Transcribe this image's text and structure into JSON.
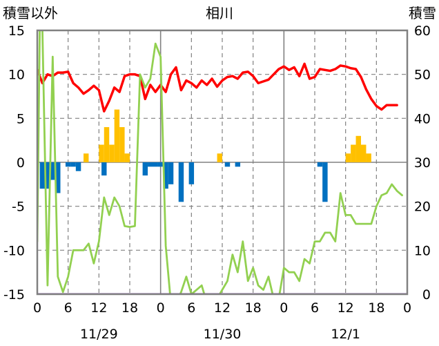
{
  "chart_data": {
    "type": "line",
    "title": "相川",
    "y_left_label": "積雪以外",
    "y_right_label": "積雪",
    "y_left_range": [
      -15,
      15
    ],
    "y_left_ticks": [
      15,
      10,
      5,
      0,
      -5,
      -10,
      -15
    ],
    "y_right_range": [
      0,
      60
    ],
    "y_right_ticks": [
      60,
      50,
      40,
      30,
      20,
      10,
      0
    ],
    "x_range": [
      0,
      72
    ],
    "x_tick_values": [
      0,
      6,
      12,
      18,
      24,
      30,
      36,
      42,
      48,
      54,
      60,
      66,
      72
    ],
    "x_tick_labels": [
      "0",
      "6",
      "12",
      "18",
      "0",
      "6",
      "12",
      "18",
      "0",
      "6",
      "12",
      "18",
      "0"
    ],
    "date_labels": [
      {
        "label": "11/29",
        "x": 12
      },
      {
        "label": "11/30",
        "x": 36
      },
      {
        "label": "12/1",
        "x": 60
      }
    ],
    "day_boundaries": [
      24,
      48
    ],
    "dashed_gridlines_x": [
      6,
      12,
      18,
      30,
      36,
      42,
      54,
      60,
      66
    ],
    "dashed_gridlines_y": [
      10,
      5,
      -5,
      -10
    ],
    "colors": {
      "temperature": "#ff0000",
      "precip": "#ffc000",
      "change": "#0070c0",
      "snow": "#92d050",
      "baseline": "#7030a0",
      "grid": "#808080"
    },
    "series": [
      {
        "kind": "line",
        "axis": "left",
        "color": "#ff0000",
        "points": [
          [
            0,
            10.5
          ],
          [
            1,
            9
          ],
          [
            2,
            10
          ],
          [
            3,
            9.8
          ],
          [
            4,
            10.2
          ],
          [
            5,
            10.2
          ],
          [
            6,
            10.3
          ],
          [
            7,
            9
          ],
          [
            8,
            8.5
          ],
          [
            9,
            7.8
          ],
          [
            10,
            8.2
          ],
          [
            11,
            8.7
          ],
          [
            12,
            8.2
          ],
          [
            13,
            5.8
          ],
          [
            14,
            7
          ],
          [
            15,
            8.5
          ],
          [
            16,
            8
          ],
          [
            17,
            9.8
          ],
          [
            18,
            10
          ],
          [
            19,
            10
          ],
          [
            20,
            9.8
          ],
          [
            21,
            7.2
          ],
          [
            22,
            8.8
          ],
          [
            23,
            8
          ],
          [
            24,
            8.8
          ],
          [
            25,
            8
          ],
          [
            26,
            10
          ],
          [
            27,
            10.8
          ],
          [
            28,
            8.2
          ],
          [
            29,
            9.3
          ],
          [
            30,
            9
          ],
          [
            31,
            8.5
          ],
          [
            32,
            9.3
          ],
          [
            33,
            8.8
          ],
          [
            34,
            9.5
          ],
          [
            35,
            8.6
          ],
          [
            36,
            9.3
          ],
          [
            37,
            9.7
          ],
          [
            38,
            9.8
          ],
          [
            39,
            9.5
          ],
          [
            40,
            10.2
          ],
          [
            41,
            10.3
          ],
          [
            42,
            9.8
          ],
          [
            43,
            9
          ],
          [
            44,
            9.2
          ],
          [
            45,
            9.4
          ],
          [
            46,
            10
          ],
          [
            47,
            10.6
          ],
          [
            48,
            10.9
          ],
          [
            49,
            10.5
          ],
          [
            50,
            10.8
          ],
          [
            51,
            9.8
          ],
          [
            52,
            11.2
          ],
          [
            53,
            9.5
          ],
          [
            54,
            9.7
          ],
          [
            55,
            10.6
          ],
          [
            56,
            10.5
          ],
          [
            57,
            10.4
          ],
          [
            58,
            10.6
          ],
          [
            59,
            11
          ],
          [
            60,
            10.9
          ],
          [
            61,
            10.7
          ],
          [
            62,
            10.6
          ],
          [
            63,
            9.7
          ],
          [
            64,
            8.3
          ],
          [
            65,
            7.2
          ],
          [
            66,
            6.4
          ],
          [
            67,
            6
          ],
          [
            68,
            6.5
          ],
          [
            69,
            6.5
          ],
          [
            70,
            6.5
          ]
        ]
      },
      {
        "kind": "line",
        "axis": "right",
        "color": "#92d050",
        "points": [
          [
            0,
            12
          ],
          [
            0.5,
            62
          ],
          [
            1,
            60
          ],
          [
            2,
            2
          ],
          [
            3,
            54
          ],
          [
            4,
            4
          ],
          [
            5,
            0.5
          ],
          [
            6,
            4
          ],
          [
            7,
            10
          ],
          [
            8,
            10
          ],
          [
            9,
            10
          ],
          [
            10,
            11.5
          ],
          [
            11,
            7
          ],
          [
            12,
            12
          ],
          [
            13,
            22
          ],
          [
            14,
            18
          ],
          [
            15,
            22
          ],
          [
            16,
            20
          ],
          [
            17,
            15.5
          ],
          [
            18,
            15.3
          ],
          [
            19,
            15.5
          ],
          [
            20,
            50
          ],
          [
            21,
            47
          ],
          [
            22,
            49
          ],
          [
            23,
            57
          ],
          [
            24,
            54
          ],
          [
            25,
            11
          ],
          [
            26,
            -2
          ],
          [
            27,
            -2
          ],
          [
            28,
            0.5
          ],
          [
            29,
            4
          ],
          [
            30,
            0
          ],
          [
            31,
            1
          ],
          [
            32,
            2
          ],
          [
            33,
            -2
          ],
          [
            34,
            0
          ],
          [
            35,
            -1
          ],
          [
            36,
            1
          ],
          [
            37,
            3
          ],
          [
            38,
            9
          ],
          [
            39,
            5
          ],
          [
            40,
            12
          ],
          [
            41,
            3
          ],
          [
            42,
            6
          ],
          [
            43,
            2
          ],
          [
            44,
            1
          ],
          [
            45,
            4
          ],
          [
            46,
            -1
          ],
          [
            47,
            -1
          ],
          [
            48,
            6
          ],
          [
            49,
            5
          ],
          [
            50,
            5
          ],
          [
            51,
            3
          ],
          [
            52,
            8
          ],
          [
            53,
            7
          ],
          [
            54,
            12
          ],
          [
            55,
            12
          ],
          [
            56,
            14
          ],
          [
            57,
            14
          ],
          [
            58,
            12
          ],
          [
            59,
            23
          ],
          [
            60,
            18
          ],
          [
            61,
            18
          ],
          [
            62,
            16
          ],
          [
            63,
            16
          ],
          [
            64,
            16
          ],
          [
            65,
            16
          ],
          [
            66,
            20
          ],
          [
            67,
            22.5
          ],
          [
            68,
            23
          ],
          [
            69,
            25
          ],
          [
            70,
            23.5
          ],
          [
            71,
            22.5
          ]
        ]
      },
      {
        "kind": "line",
        "axis": "left",
        "color": "#7030a0",
        "points": [
          [
            0,
            -15
          ],
          [
            72,
            -15
          ]
        ]
      },
      {
        "kind": "bar",
        "axis": "left",
        "color": "#ffc000",
        "width": 1,
        "points": [
          [
            9,
            1
          ],
          [
            12,
            2
          ],
          [
            13,
            4
          ],
          [
            14,
            2
          ],
          [
            15,
            6
          ],
          [
            16,
            4
          ],
          [
            17,
            1
          ],
          [
            35,
            1
          ],
          [
            60,
            1
          ],
          [
            61,
            2
          ],
          [
            62,
            3
          ],
          [
            63,
            2
          ],
          [
            64,
            1
          ]
        ]
      },
      {
        "kind": "bar",
        "axis": "left",
        "color": "#0070c0",
        "width": 1,
        "points": [
          [
            0.5,
            -3
          ],
          [
            1.5,
            -3
          ],
          [
            2.5,
            -2
          ],
          [
            3.5,
            -3.5
          ],
          [
            5.5,
            -0.5
          ],
          [
            6.5,
            -0.5
          ],
          [
            7.5,
            -1
          ],
          [
            12.5,
            -1.5
          ],
          [
            20.5,
            -1.5
          ],
          [
            21.5,
            -0.5
          ],
          [
            22.5,
            -0.5
          ],
          [
            23.5,
            -0.5
          ],
          [
            24.5,
            -3
          ],
          [
            25.5,
            -2.5
          ],
          [
            27.5,
            -4.5
          ],
          [
            29.5,
            -2.5
          ],
          [
            36.5,
            -0.5
          ],
          [
            38.5,
            -0.5
          ],
          [
            54.5,
            -0.5
          ],
          [
            55.5,
            -4.5
          ]
        ]
      }
    ]
  }
}
